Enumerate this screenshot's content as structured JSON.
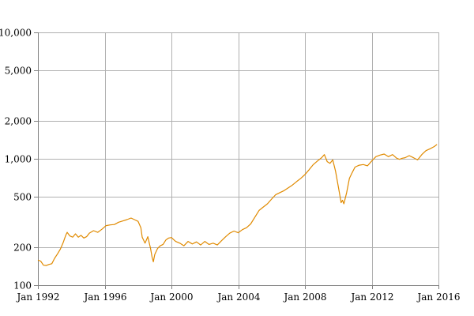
{
  "chart_data": {
    "type": "line",
    "title": "",
    "xlabel": "",
    "ylabel": "",
    "y_scale": "log",
    "grid": true,
    "xlim": [
      "1992-01",
      "2016-01"
    ],
    "ylim": [
      100,
      10000
    ],
    "x_ticks": [
      {
        "value": "1992-01",
        "label": "Jan 1992"
      },
      {
        "value": "1996-01",
        "label": "Jan 1996"
      },
      {
        "value": "2000-01",
        "label": "Jan 2000"
      },
      {
        "value": "2004-01",
        "label": "Jan 2004"
      },
      {
        "value": "2008-01",
        "label": "Jan 2008"
      },
      {
        "value": "2012-01",
        "label": "Jan 2012"
      },
      {
        "value": "2016-01",
        "label": "Jan 2016"
      }
    ],
    "y_ticks": [
      {
        "value": 100,
        "label": "100"
      },
      {
        "value": 200,
        "label": "200"
      },
      {
        "value": 500,
        "label": "500"
      },
      {
        "value": 1000,
        "label": "1,000"
      },
      {
        "value": 2000,
        "label": "2,000"
      },
      {
        "value": 5000,
        "label": "5,000"
      },
      {
        "value": 10000,
        "label": "10,000"
      }
    ],
    "colors": {
      "series": "#e08a00",
      "grid": "#b0b0b0",
      "axis": "#808080"
    },
    "series": [
      {
        "points": [
          [
            "1992-01",
            158
          ],
          [
            "1992-03",
            155
          ],
          [
            "1992-05",
            144
          ],
          [
            "1992-07",
            143
          ],
          [
            "1992-09",
            146
          ],
          [
            "1992-11",
            148
          ],
          [
            "1993-01",
            163
          ],
          [
            "1993-03",
            176
          ],
          [
            "1993-05",
            192
          ],
          [
            "1993-07",
            215
          ],
          [
            "1993-09",
            248
          ],
          [
            "1993-10",
            262
          ],
          [
            "1993-12",
            245
          ],
          [
            "1994-02",
            240
          ],
          [
            "1994-04",
            255
          ],
          [
            "1994-06",
            240
          ],
          [
            "1994-08",
            248
          ],
          [
            "1994-10",
            236
          ],
          [
            "1994-12",
            242
          ],
          [
            "1995-02",
            258
          ],
          [
            "1995-05",
            270
          ],
          [
            "1995-08",
            262
          ],
          [
            "1995-11",
            277
          ],
          [
            "1996-02",
            296
          ],
          [
            "1996-05",
            300
          ],
          [
            "1996-08",
            302
          ],
          [
            "1996-11",
            315
          ],
          [
            "1997-02",
            322
          ],
          [
            "1997-05",
            330
          ],
          [
            "1997-08",
            340
          ],
          [
            "1997-11",
            328
          ],
          [
            "1998-01",
            320
          ],
          [
            "1998-03",
            285
          ],
          [
            "1998-04",
            240
          ],
          [
            "1998-06",
            215
          ],
          [
            "1998-08",
            242
          ],
          [
            "1998-10",
            195
          ],
          [
            "1998-11",
            168
          ],
          [
            "1998-12",
            153
          ],
          [
            "1999-01",
            175
          ],
          [
            "1999-03",
            195
          ],
          [
            "1999-05",
            205
          ],
          [
            "1999-07",
            210
          ],
          [
            "1999-09",
            228
          ],
          [
            "1999-11",
            236
          ],
          [
            "2000-01",
            238
          ],
          [
            "2000-04",
            222
          ],
          [
            "2000-07",
            215
          ],
          [
            "2000-10",
            205
          ],
          [
            "2001-01",
            222
          ],
          [
            "2001-04",
            212
          ],
          [
            "2001-07",
            220
          ],
          [
            "2001-10",
            208
          ],
          [
            "2002-01",
            222
          ],
          [
            "2002-04",
            210
          ],
          [
            "2002-07",
            215
          ],
          [
            "2002-10",
            208
          ],
          [
            "2003-01",
            225
          ],
          [
            "2003-04",
            242
          ],
          [
            "2003-07",
            258
          ],
          [
            "2003-10",
            268
          ],
          [
            "2004-01",
            260
          ],
          [
            "2004-04",
            275
          ],
          [
            "2004-07",
            285
          ],
          [
            "2004-10",
            305
          ],
          [
            "2005-01",
            345
          ],
          [
            "2005-04",
            390
          ],
          [
            "2005-07",
            415
          ],
          [
            "2005-10",
            440
          ],
          [
            "2006-01",
            480
          ],
          [
            "2006-04",
            520
          ],
          [
            "2006-07",
            540
          ],
          [
            "2006-10",
            560
          ],
          [
            "2007-01",
            590
          ],
          [
            "2007-04",
            620
          ],
          [
            "2007-07",
            660
          ],
          [
            "2007-10",
            700
          ],
          [
            "2008-01",
            750
          ],
          [
            "2008-04",
            820
          ],
          [
            "2008-07",
            900
          ],
          [
            "2008-10",
            960
          ],
          [
            "2009-01",
            1020
          ],
          [
            "2009-03",
            1080
          ],
          [
            "2009-05",
            950
          ],
          [
            "2009-07",
            920
          ],
          [
            "2009-09",
            980
          ],
          [
            "2009-11",
            800
          ],
          [
            "2010-01",
            600
          ],
          [
            "2010-03",
            450
          ],
          [
            "2010-04",
            470
          ],
          [
            "2010-05",
            440
          ],
          [
            "2010-07",
            540
          ],
          [
            "2010-09",
            700
          ],
          [
            "2010-11",
            780
          ],
          [
            "2011-01",
            860
          ],
          [
            "2011-04",
            890
          ],
          [
            "2011-07",
            900
          ],
          [
            "2011-10",
            880
          ],
          [
            "2012-01",
            960
          ],
          [
            "2012-04",
            1040
          ],
          [
            "2012-07",
            1070
          ],
          [
            "2012-10",
            1090
          ],
          [
            "2013-01",
            1040
          ],
          [
            "2013-04",
            1080
          ],
          [
            "2013-07",
            1010
          ],
          [
            "2013-09",
            990
          ],
          [
            "2013-11",
            1010
          ],
          [
            "2014-01",
            1020
          ],
          [
            "2014-04",
            1060
          ],
          [
            "2014-07",
            1020
          ],
          [
            "2014-10",
            980
          ],
          [
            "2015-01",
            1080
          ],
          [
            "2015-04",
            1160
          ],
          [
            "2015-07",
            1200
          ],
          [
            "2015-10",
            1250
          ],
          [
            "2015-12",
            1300
          ]
        ]
      }
    ]
  }
}
